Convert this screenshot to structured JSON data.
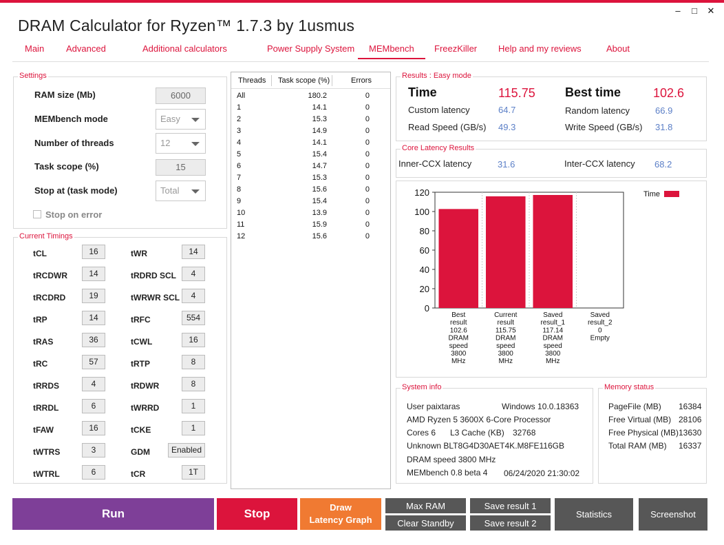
{
  "app": {
    "title": "DRAM Calculator for Ryzen™ 1.7.3 by 1usmus"
  },
  "window_controls": {
    "minimize": "–",
    "maximize": "□",
    "close": "✕"
  },
  "tabs": [
    "Main",
    "Advanced",
    "Additional calculators",
    "Power Supply System",
    "MEMbench",
    "FreezKiller",
    "Help and my reviews",
    "About"
  ],
  "settings": {
    "title": "Settings",
    "ram_size_label": "RAM size (Mb)",
    "ram_size_value": "6000",
    "mode_label": "MEMbench mode",
    "mode_value": "Easy",
    "threads_label": "Number of threads",
    "threads_value": "12",
    "task_scope_label": "Task scope (%)",
    "task_scope_value": "15",
    "stop_at_label": "Stop at (task mode)",
    "stop_at_value": "Total",
    "stop_on_error_label": "Stop on error"
  },
  "timings": {
    "title": "Current Timings",
    "left": [
      {
        "label": "tCL",
        "value": "16"
      },
      {
        "label": "tRCDWR",
        "value": "14"
      },
      {
        "label": "tRCDRD",
        "value": "19"
      },
      {
        "label": "tRP",
        "value": "14"
      },
      {
        "label": "tRAS",
        "value": "36"
      },
      {
        "label": "tRC",
        "value": "57"
      },
      {
        "label": "tRRDS",
        "value": "4"
      },
      {
        "label": "tRRDL",
        "value": "6"
      },
      {
        "label": "tFAW",
        "value": "16"
      },
      {
        "label": "tWTRS",
        "value": "3"
      },
      {
        "label": "tWTRL",
        "value": "6"
      }
    ],
    "right": [
      {
        "label": "tWR",
        "value": "14"
      },
      {
        "label": "tRDRD SCL",
        "value": "4"
      },
      {
        "label": "tWRWR SCL",
        "value": "4"
      },
      {
        "label": "tRFC",
        "value": "554"
      },
      {
        "label": "tCWL",
        "value": "16"
      },
      {
        "label": "tRTP",
        "value": "8"
      },
      {
        "label": "tRDWR",
        "value": "8"
      },
      {
        "label": "tWRRD",
        "value": "1"
      },
      {
        "label": "tCKE",
        "value": "1"
      },
      {
        "label": "GDM",
        "value": "Enabled"
      },
      {
        "label": "tCR",
        "value": "1T"
      }
    ]
  },
  "thread_table": {
    "headers": [
      "Threads",
      "Task scope (%)",
      "Errors"
    ],
    "rows": [
      [
        "All",
        "180.2",
        "0"
      ],
      [
        "1",
        "14.1",
        "0"
      ],
      [
        "2",
        "15.3",
        "0"
      ],
      [
        "3",
        "14.9",
        "0"
      ],
      [
        "4",
        "14.1",
        "0"
      ],
      [
        "5",
        "15.4",
        "0"
      ],
      [
        "6",
        "14.7",
        "0"
      ],
      [
        "7",
        "15.3",
        "0"
      ],
      [
        "8",
        "15.6",
        "0"
      ],
      [
        "9",
        "15.4",
        "0"
      ],
      [
        "10",
        "13.9",
        "0"
      ],
      [
        "11",
        "15.9",
        "0"
      ],
      [
        "12",
        "15.6",
        "0"
      ]
    ]
  },
  "results": {
    "title": "Results : Easy mode",
    "time_label": "Time",
    "time_value": "115.75",
    "best_label": "Best time",
    "best_value": "102.6",
    "custom_latency_label": "Custom latency",
    "custom_latency_value": "64.7",
    "random_latency_label": "Random latency",
    "random_latency_value": "66.9",
    "read_label": "Read Speed (GB/s)",
    "read_value": "49.3",
    "write_label": "Write Speed (GB/s)",
    "write_value": "31.8"
  },
  "core_latency": {
    "title": "Core Latency Results",
    "inner_label": "Inner-CCX latency",
    "inner_value": "31.6",
    "inter_label": "Inter-CCX latency",
    "inter_value": "68.2"
  },
  "chart_data": {
    "type": "bar",
    "categories": [
      [
        "Best",
        "result",
        "102.6",
        "DRAM",
        "speed",
        "3800",
        "MHz"
      ],
      [
        "Current",
        "result",
        "115.75",
        "DRAM",
        "speed",
        "3800",
        "MHz"
      ],
      [
        "Saved",
        "result_1",
        "117.14",
        "DRAM",
        "speed",
        "3800",
        "MHz"
      ],
      [
        "Saved",
        "result_2",
        "0",
        "Empty"
      ]
    ],
    "series": [
      {
        "name": "Time",
        "values": [
          102.6,
          115.75,
          117.14,
          0
        ],
        "color": "#dc143c"
      }
    ],
    "ylim": [
      0,
      120
    ],
    "yticks": [
      0,
      20,
      40,
      60,
      80,
      100,
      120
    ],
    "legend": "top-right",
    "grid": true
  },
  "system_info": {
    "title": "System info",
    "user_label": "User paixtaras",
    "os": "Windows 10.0.18363",
    "cpu": "AMD Ryzen 5 3600X 6-Core Processor",
    "cores": "Cores 6",
    "l3_label": "L3 Cache (KB)",
    "l3_value": "32768",
    "memory_module": "Unknown BLT8G4D30AET4K.M8FE116GB",
    "dram_speed": "DRAM speed 3800 MHz",
    "membench_version": "MEMbench 0.8 beta 4",
    "datetime": "06/24/2020 21:30:02"
  },
  "memory_status": {
    "title": "Memory status",
    "items": [
      {
        "label": "PageFile (MB)",
        "value": "16384"
      },
      {
        "label": "Free Virtual (MB)",
        "value": "28106"
      },
      {
        "label": "Free Physical (MB)",
        "value": "13630"
      },
      {
        "label": "Total RAM (MB)",
        "value": "16337"
      }
    ]
  },
  "buttons": {
    "run": "Run",
    "stop": "Stop",
    "draw_line1": "Draw",
    "draw_line2": "Latency Graph",
    "max_ram": "Max RAM",
    "clear_standby": "Clear Standby",
    "save1": "Save result 1",
    "save2": "Save result 2",
    "statistics": "Statistics",
    "screenshot": "Screenshot"
  },
  "colors": {
    "accent": "#dc143c",
    "run": "#7e3f98",
    "draw": "#f07a32",
    "gray_button": "#575757",
    "value_blue": "#5b7fc7"
  }
}
